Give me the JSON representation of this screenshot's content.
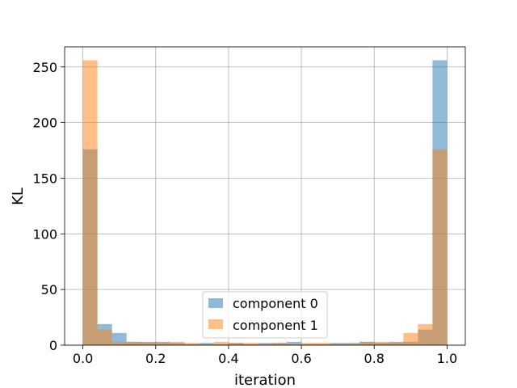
{
  "chart_data": {
    "type": "bar",
    "subtype": "overlapping-histogram",
    "title": "",
    "xlabel": "iteration",
    "ylabel": "KL",
    "xlim": [
      -0.05,
      1.05
    ],
    "ylim": [
      0,
      268
    ],
    "xticks": [
      0.0,
      0.2,
      0.4,
      0.6,
      0.8,
      1.0
    ],
    "xtick_labels": [
      "0.0",
      "0.2",
      "0.4",
      "0.6",
      "0.8",
      "1.0"
    ],
    "yticks": [
      0,
      50,
      100,
      150,
      200,
      250
    ],
    "ytick_labels": [
      "0",
      "50",
      "100",
      "150",
      "200",
      "250"
    ],
    "grid": true,
    "legend_position": "lower-center",
    "bin_edges": [
      0.0,
      0.04,
      0.08,
      0.12,
      0.16,
      0.2,
      0.24,
      0.28,
      0.32,
      0.36,
      0.4,
      0.44,
      0.48,
      0.52,
      0.56,
      0.6,
      0.64,
      0.68,
      0.72,
      0.76,
      0.8,
      0.84,
      0.88,
      0.92,
      0.96,
      1.0
    ],
    "series": [
      {
        "name": "component 0",
        "color": "#1f77b4",
        "alpha": 0.5,
        "values": [
          176,
          19,
          11,
          3,
          3,
          3,
          2,
          1,
          2,
          1,
          2,
          1,
          2,
          2,
          3,
          1,
          1,
          2,
          2,
          3,
          2,
          3,
          3,
          14,
          256
        ]
      },
      {
        "name": "component 1",
        "color": "#ff7f0e",
        "alpha": 0.5,
        "values": [
          256,
          14,
          3,
          3,
          2,
          2,
          3,
          2,
          1,
          3,
          2,
          2,
          1,
          2,
          1,
          2,
          2,
          1,
          1,
          3,
          3,
          2,
          11,
          19,
          176
        ]
      }
    ]
  }
}
